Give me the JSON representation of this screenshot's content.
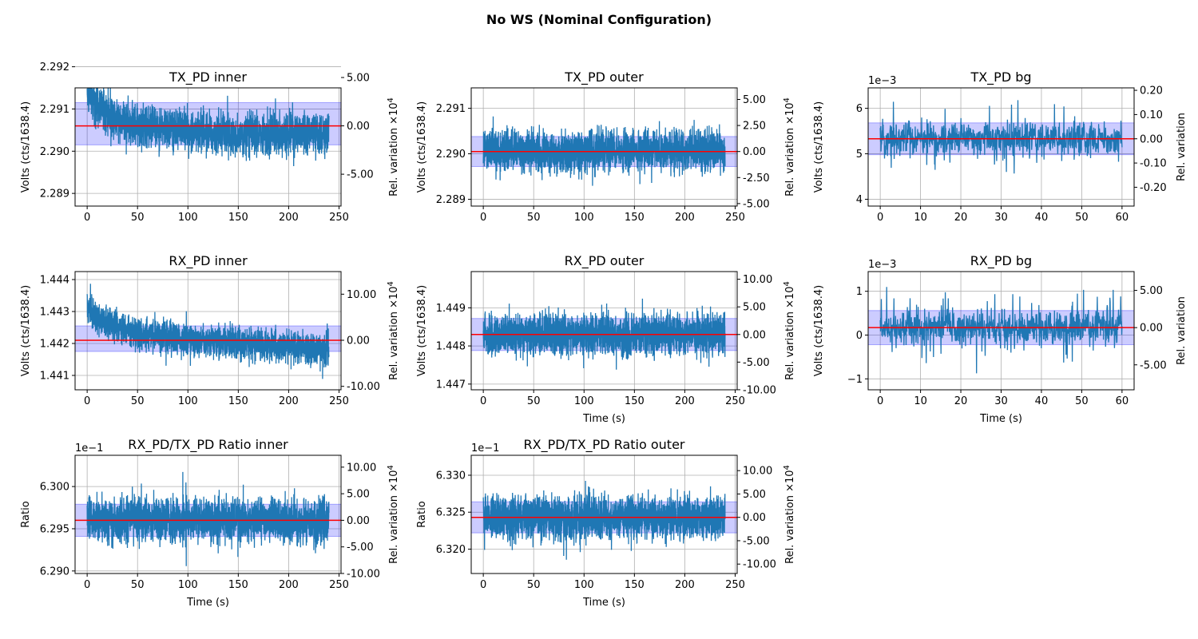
{
  "figure": {
    "title": "No WS (Nominal Configuration)"
  },
  "style": {
    "line_color": "#1f77b4",
    "mean_color": "#ff0000",
    "band_color": "#0000ff",
    "grid_color": "#b0b0b0"
  },
  "chart_data": [
    {
      "type": "line",
      "title": "TX_PD inner",
      "xlabel": "",
      "ylabel": "Volts (cts/1638.4)",
      "y2label": "Rel. variation ×10",
      "y2label_sup": "4",
      "xlim": [
        -12,
        252
      ],
      "ylim": [
        2.2887,
        2.2915
      ],
      "xticks": [
        0,
        50,
        100,
        150,
        200,
        250
      ],
      "yticks": [
        2.289,
        2.29,
        2.291,
        2.292
      ],
      "ytick_labels": [
        "2.289",
        "2.290",
        "2.291",
        "2.292"
      ],
      "y2ticks": [
        -5,
        0,
        5
      ],
      "y2tick_labels": [
        "-5.00",
        "0.00",
        "5.00"
      ],
      "y2_scale": 10000,
      "offset_label": "",
      "grid": true,
      "mean": 2.2906,
      "band": [
        2.29015,
        2.29115
      ],
      "series": [
        {
          "x_range": [
            0,
            240
          ],
          "n_points": 2400,
          "baseline": {
            "x": [
              0,
              20,
              50,
              100,
              150,
              200,
              240
            ],
            "y": [
              2.2914,
              2.2909,
              2.2906,
              2.2905,
              2.2904,
              2.2904,
              2.2904
            ]
          },
          "std": 0.0003,
          "spike_prob": 0.02,
          "spike_amp": 0.00055
        }
      ]
    },
    {
      "type": "line",
      "title": "TX_PD outer",
      "xlabel": "",
      "ylabel": "Volts (cts/1638.4)",
      "y2label": "Rel. variation ×10",
      "y2label_sup": "4",
      "xlim": [
        -12,
        252
      ],
      "ylim": [
        2.28885,
        2.29145
      ],
      "xticks": [
        0,
        50,
        100,
        150,
        200,
        250
      ],
      "yticks": [
        2.289,
        2.29,
        2.291
      ],
      "ytick_labels": [
        "2.289",
        "2.290",
        "2.291"
      ],
      "y2ticks": [
        -5,
        -2.5,
        0,
        2.5,
        5
      ],
      "y2tick_labels": [
        "-5.00",
        "-2.50",
        "0.00",
        "2.50",
        "5.00"
      ],
      "y2_scale": 10000,
      "offset_label": "",
      "grid": true,
      "mean": 2.29005,
      "band": [
        2.28972,
        2.29038
      ],
      "series": [
        {
          "x_range": [
            0,
            240
          ],
          "n_points": 2400,
          "baseline": {
            "x": [
              0,
              240
            ],
            "y": [
              2.29005,
              2.29005
            ]
          },
          "std": 0.00028,
          "spike_prob": 0.02,
          "spike_amp": 0.0005
        }
      ]
    },
    {
      "type": "line",
      "title": "TX_PD bg",
      "xlabel": "",
      "ylabel": "Volts (cts/1638.4)",
      "y2label": "Rel. variation",
      "y2label_sup": "",
      "xlim": [
        -3,
        63
      ],
      "ylim": [
        3.85,
        6.45
      ],
      "xticks": [
        0,
        10,
        20,
        30,
        40,
        50,
        60
      ],
      "yticks": [
        4,
        5,
        6
      ],
      "ytick_labels": [
        "4",
        "5",
        "6"
      ],
      "y2ticks": [
        -0.2,
        -0.1,
        0,
        0.1,
        0.2
      ],
      "y2tick_labels": [
        "-0.20",
        "-0.10",
        "0.00",
        "0.10",
        "0.20"
      ],
      "y2_scale": 1,
      "offset_label": "1e−3",
      "grid": true,
      "mean": 5.33,
      "band": [
        4.98,
        5.68
      ],
      "series": [
        {
          "x_range": [
            0,
            60
          ],
          "n_points": 900,
          "baseline": {
            "x": [
              0,
              60
            ],
            "y": [
              5.33,
              5.33
            ]
          },
          "std": 0.22,
          "spike_prob": 0.05,
          "spike_amp": 0.6
        }
      ]
    },
    {
      "type": "line",
      "title": "RX_PD inner",
      "xlabel": "",
      "ylabel": "Volts (cts/1638.4)",
      "y2label": "Rel. variation ×10",
      "y2label_sup": "4",
      "xlim": [
        -12,
        252
      ],
      "ylim": [
        1.44055,
        1.44425
      ],
      "xticks": [
        0,
        50,
        100,
        150,
        200,
        250
      ],
      "yticks": [
        1.441,
        1.442,
        1.443,
        1.444
      ],
      "ytick_labels": [
        "1.441",
        "1.442",
        "1.443",
        "1.444"
      ],
      "y2ticks": [
        -10,
        0,
        10
      ],
      "y2tick_labels": [
        "-10.00",
        "0.00",
        "10.00"
      ],
      "y2_scale": 10000,
      "offset_label": "",
      "grid": true,
      "mean": 1.4421,
      "band": [
        1.44175,
        1.44255
      ],
      "series": [
        {
          "x_range": [
            0,
            240
          ],
          "n_points": 2400,
          "baseline": {
            "x": [
              0,
              15,
              50,
              100,
              150,
              200,
              240
            ],
            "y": [
              1.4431,
              1.4427,
              1.4423,
              1.4421,
              1.442,
              1.4419,
              1.4418
            ]
          },
          "std": 0.0003,
          "spike_prob": 0.02,
          "spike_amp": 0.0006
        }
      ]
    },
    {
      "type": "line",
      "title": "RX_PD outer",
      "xlabel": "Time (s)",
      "ylabel": "Volts (cts/1638.4)",
      "y2label": "Rel. variation ×10",
      "y2label_sup": "4",
      "xlim": [
        -12,
        252
      ],
      "ylim": [
        1.44685,
        1.44995
      ],
      "xticks": [
        0,
        50,
        100,
        150,
        200,
        250
      ],
      "yticks": [
        1.447,
        1.448,
        1.449
      ],
      "ytick_labels": [
        "1.447",
        "1.448",
        "1.449"
      ],
      "y2ticks": [
        -10,
        -5,
        0,
        5,
        10
      ],
      "y2tick_labels": [
        "-10.00",
        "-5.00",
        "0.00",
        "5.00",
        "10.00"
      ],
      "y2_scale": 10000,
      "offset_label": "",
      "grid": true,
      "mean": 1.4483,
      "band": [
        1.44788,
        1.44872
      ],
      "series": [
        {
          "x_range": [
            0,
            240
          ],
          "n_points": 2400,
          "baseline": {
            "x": [
              0,
              240
            ],
            "y": [
              1.4483,
              1.4483
            ]
          },
          "std": 0.00033,
          "spike_prob": 0.02,
          "spike_amp": 0.0006
        }
      ]
    },
    {
      "type": "line",
      "title": "RX_PD bg",
      "xlabel": "Time (s)",
      "ylabel": "Volts (cts/1638.4)",
      "y2label": "Rel. variation",
      "y2label_sup": "",
      "xlim": [
        -3,
        63
      ],
      "ylim": [
        -1.25,
        1.45
      ],
      "xticks": [
        0,
        10,
        20,
        30,
        40,
        50,
        60
      ],
      "yticks": [
        -1,
        0,
        1
      ],
      "ytick_labels": [
        "−1",
        "0",
        "1"
      ],
      "y2ticks": [
        -5,
        0,
        5
      ],
      "y2tick_labels": [
        "-5.00",
        "0.00",
        "5.00"
      ],
      "y2_scale": 1,
      "offset_label": "1e−3",
      "grid": true,
      "mean": 0.17,
      "band": [
        -0.22,
        0.56
      ],
      "series": [
        {
          "x_range": [
            0,
            60
          ],
          "n_points": 900,
          "baseline": {
            "x": [
              0,
              60
            ],
            "y": [
              0.17,
              0.17
            ]
          },
          "std": 0.24,
          "spike_prob": 0.05,
          "spike_amp": 0.7
        }
      ]
    },
    {
      "type": "line",
      "title": "RX_PD/TX_PD Ratio inner",
      "xlabel": "Time (s)",
      "ylabel": "Ratio",
      "y2label": "Rel. variation ×10",
      "y2label_sup": "4",
      "xlim": [
        -12,
        252
      ],
      "ylim": [
        6.2897,
        6.3037
      ],
      "xticks": [
        0,
        50,
        100,
        150,
        200,
        250
      ],
      "yticks": [
        6.29,
        6.295,
        6.3
      ],
      "ytick_labels": [
        "6.290",
        "6.295",
        "6.300"
      ],
      "y2ticks": [
        -10,
        -5,
        0,
        5,
        10
      ],
      "y2tick_labels": [
        "-10.00",
        "-5.00",
        "0.00",
        "5.00",
        "10.00"
      ],
      "y2_scale": 10000,
      "offset_label": "1e−1",
      "grid": true,
      "mean": 6.296,
      "band": [
        6.2941,
        6.2979
      ],
      "series": [
        {
          "x_range": [
            0,
            240
          ],
          "n_points": 2400,
          "baseline": {
            "x": [
              0,
              240
            ],
            "y": [
              6.296,
              6.296
            ]
          },
          "std": 0.0016,
          "spike_prob": 0.02,
          "spike_amp": 0.003
        }
      ]
    },
    {
      "type": "line",
      "title": "RX_PD/TX_PD Ratio outer",
      "xlabel": "Time (s)",
      "ylabel": "Ratio",
      "y2label": "Rel. variation ×10",
      "y2label_sup": "4",
      "xlim": [
        -12,
        252
      ],
      "ylim": [
        6.3167,
        6.3327
      ],
      "xticks": [
        0,
        50,
        100,
        150,
        200,
        250
      ],
      "yticks": [
        6.32,
        6.325,
        6.33
      ],
      "ytick_labels": [
        "6.320",
        "6.325",
        "6.330"
      ],
      "y2ticks": [
        -10,
        -5,
        0,
        5,
        10
      ],
      "y2tick_labels": [
        "-10.00",
        "-5.00",
        "0.00",
        "5.00",
        "10.00"
      ],
      "y2_scale": 10000,
      "offset_label": "1e−1",
      "grid": true,
      "mean": 6.3243,
      "band": [
        6.3222,
        6.3264
      ],
      "series": [
        {
          "x_range": [
            0,
            240
          ],
          "n_points": 2400,
          "baseline": {
            "x": [
              0,
              240
            ],
            "y": [
              6.3243,
              6.3243
            ]
          },
          "std": 0.0018,
          "spike_prob": 0.02,
          "spike_amp": 0.0035
        }
      ]
    }
  ]
}
